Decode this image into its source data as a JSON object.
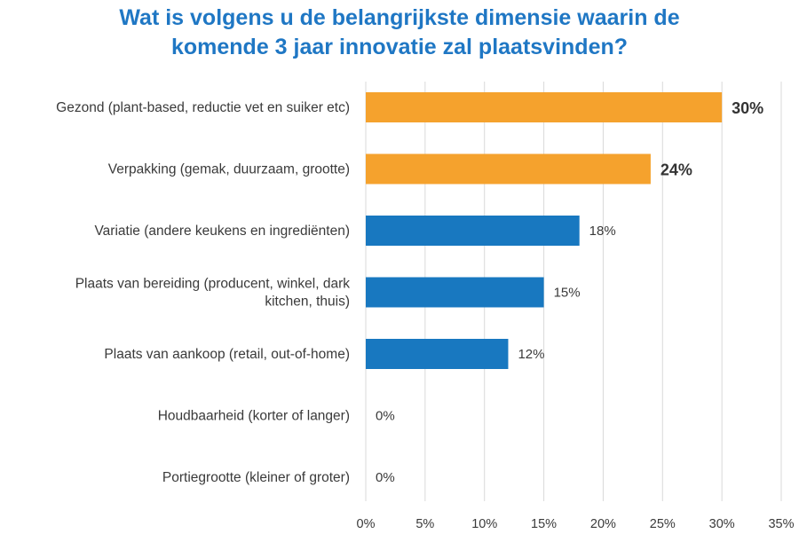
{
  "chart_data": {
    "type": "bar",
    "orientation": "horizontal",
    "title_lines": [
      "Wat is volgens u de belangrijkste dimensie waarin de",
      "komende 3 jaar innovatie zal plaatsvinden?"
    ],
    "categories": [
      [
        "Gezond (plant-based, reductie vet en suiker etc)"
      ],
      [
        "Verpakking (gemak, duurzaam, grootte)"
      ],
      [
        "Variatie (andere keukens en ingrediënten)"
      ],
      [
        "Plaats van bereiding (producent, winkel, dark",
        "kitchen, thuis)"
      ],
      [
        "Plaats van aankoop (retail, out-of-home)"
      ],
      [
        "Houdbaarheid (korter of langer)"
      ],
      [
        "Portiegrootte (kleiner of groter)"
      ]
    ],
    "values": [
      30,
      24,
      18,
      15,
      12,
      0,
      0
    ],
    "value_labels": [
      "30%",
      "24%",
      "18%",
      "15%",
      "12%",
      "0%",
      "0%"
    ],
    "highlighted": [
      true,
      true,
      false,
      false,
      false,
      false,
      false
    ],
    "x_ticks": [
      0,
      5,
      10,
      15,
      20,
      25,
      30,
      35
    ],
    "x_tick_labels": [
      "0%",
      "5%",
      "10%",
      "15%",
      "20%",
      "25%",
      "30%",
      "35%"
    ],
    "xlim": [
      0,
      35
    ],
    "xlabel": "",
    "ylabel": "",
    "grid": true,
    "colors": {
      "highlight": "#f5a22d",
      "default": "#1878c0",
      "grid": "#d9d9d9",
      "title": "#1f77c4"
    }
  }
}
